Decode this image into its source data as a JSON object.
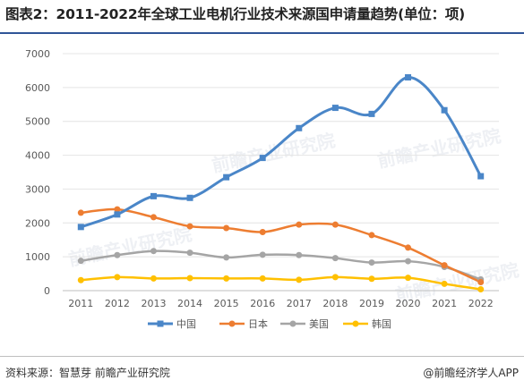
{
  "title": "图表2：2011-2022年全球工业电机行业技术来源国申请量趋势(单位：项)",
  "source": "资料来源：智慧芽 前瞻产业研究院",
  "brand": "@前瞻经济学人APP",
  "watermark": "前瞻产业研究院",
  "chart_data": {
    "type": "line",
    "categories": [
      "2011",
      "2012",
      "2013",
      "2014",
      "2015",
      "2016",
      "2017",
      "2018",
      "2019",
      "2020",
      "2021",
      "2022"
    ],
    "ylim": [
      0,
      7000
    ],
    "yticks": [
      "0",
      "1000",
      "2000",
      "3000",
      "4000",
      "5000",
      "6000",
      "7000"
    ],
    "grid": true,
    "legend_position": "bottom",
    "series": [
      {
        "name": "中国",
        "color": "#4a86c8",
        "marker": "square",
        "width": 3,
        "values": [
          1880,
          2250,
          2790,
          2740,
          3350,
          3920,
          4800,
          5400,
          5220,
          6300,
          5330,
          3380
        ]
      },
      {
        "name": "日本",
        "color": "#ed7d31",
        "marker": "circle",
        "width": 2.5,
        "values": [
          2300,
          2400,
          2170,
          1900,
          1850,
          1730,
          1950,
          1950,
          1640,
          1270,
          750,
          250
        ]
      },
      {
        "name": "美国",
        "color": "#a5a5a5",
        "marker": "circle",
        "width": 2.5,
        "values": [
          880,
          1050,
          1170,
          1120,
          980,
          1060,
          1050,
          960,
          830,
          870,
          700,
          330
        ]
      },
      {
        "name": "韩国",
        "color": "#ffc000",
        "marker": "circle",
        "width": 2.5,
        "values": [
          310,
          400,
          360,
          370,
          360,
          360,
          320,
          400,
          350,
          380,
          200,
          40
        ]
      }
    ]
  }
}
